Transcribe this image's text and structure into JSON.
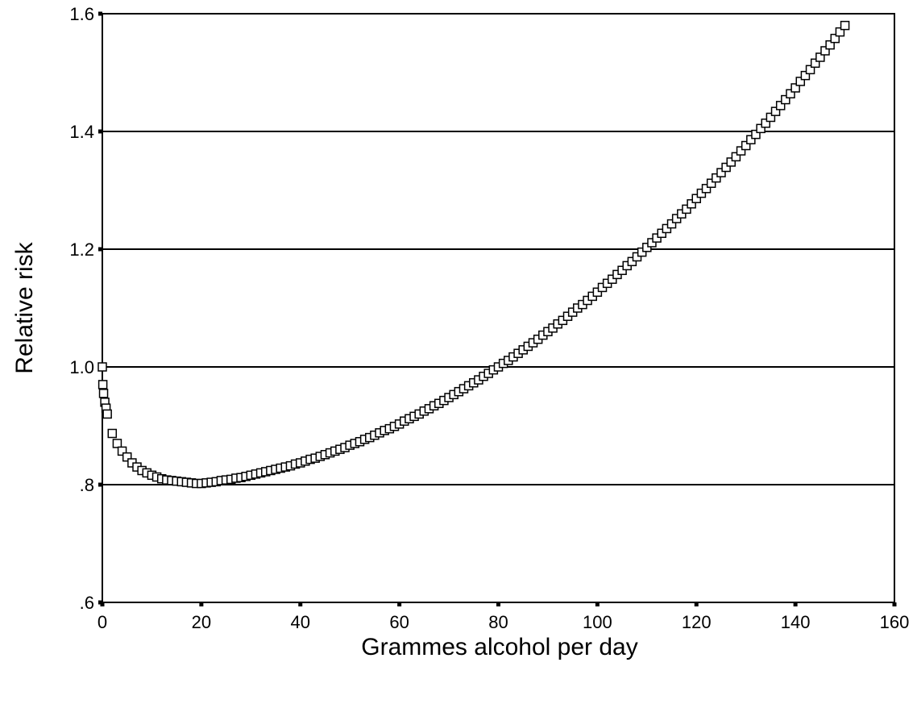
{
  "chart_data": {
    "type": "scatter",
    "xlabel": "Grammes alcohol per day",
    "ylabel": "Relative risk",
    "color": "#000000",
    "marker": "square-open",
    "x": [
      0,
      0.1,
      0.25,
      0.5,
      0.75,
      1,
      2,
      3,
      4,
      5,
      6,
      7,
      8,
      9,
      10,
      11,
      12,
      13,
      14,
      15,
      16,
      17,
      18,
      19,
      20,
      21,
      22,
      23,
      24,
      25,
      26,
      27,
      28,
      29,
      30,
      31,
      32,
      33,
      34,
      35,
      36,
      37,
      38,
      39,
      40,
      41,
      42,
      43,
      44,
      45,
      46,
      47,
      48,
      49,
      50,
      51,
      52,
      53,
      54,
      55,
      56,
      57,
      58,
      59,
      60,
      61,
      62,
      63,
      64,
      65,
      66,
      67,
      68,
      69,
      70,
      71,
      72,
      73,
      74,
      75,
      76,
      77,
      78,
      79,
      80,
      81,
      82,
      83,
      84,
      85,
      86,
      87,
      88,
      89,
      90,
      91,
      92,
      93,
      94,
      95,
      96,
      97,
      98,
      99,
      100,
      101,
      102,
      103,
      104,
      105,
      106,
      107,
      108,
      109,
      110,
      111,
      112,
      113,
      114,
      115,
      116,
      117,
      118,
      119,
      120,
      121,
      122,
      123,
      124,
      125,
      126,
      127,
      128,
      129,
      130,
      131,
      132,
      133,
      134,
      135,
      136,
      137,
      138,
      139,
      140,
      141,
      142,
      143,
      144,
      145,
      146,
      147,
      148,
      149,
      150
    ],
    "values": [
      1.0,
      0.97,
      0.955,
      0.94,
      0.93,
      0.92,
      0.887,
      0.87,
      0.857,
      0.847,
      0.837,
      0.83,
      0.824,
      0.82,
      0.816,
      0.813,
      0.81,
      0.808,
      0.807,
      0.806,
      0.805,
      0.804,
      0.803,
      0.802,
      0.802,
      0.803,
      0.804,
      0.805,
      0.807,
      0.808,
      0.809,
      0.811,
      0.812,
      0.814,
      0.816,
      0.818,
      0.82,
      0.822,
      0.824,
      0.826,
      0.828,
      0.83,
      0.832,
      0.835,
      0.837,
      0.84,
      0.843,
      0.845,
      0.848,
      0.851,
      0.854,
      0.857,
      0.86,
      0.863,
      0.867,
      0.87,
      0.873,
      0.877,
      0.88,
      0.884,
      0.888,
      0.892,
      0.895,
      0.899,
      0.903,
      0.908,
      0.912,
      0.916,
      0.92,
      0.925,
      0.929,
      0.934,
      0.938,
      0.943,
      0.948,
      0.953,
      0.958,
      0.963,
      0.968,
      0.973,
      0.978,
      0.984,
      0.989,
      0.995,
      1.0,
      1.006,
      1.011,
      1.017,
      1.023,
      1.029,
      1.035,
      1.041,
      1.047,
      1.054,
      1.06,
      1.066,
      1.073,
      1.079,
      1.086,
      1.093,
      1.1,
      1.106,
      1.113,
      1.12,
      1.127,
      1.135,
      1.142,
      1.149,
      1.157,
      1.164,
      1.172,
      1.179,
      1.187,
      1.195,
      1.203,
      1.211,
      1.219,
      1.227,
      1.235,
      1.243,
      1.252,
      1.26,
      1.268,
      1.277,
      1.286,
      1.295,
      1.303,
      1.312,
      1.321,
      1.33,
      1.339,
      1.348,
      1.357,
      1.367,
      1.376,
      1.386,
      1.395,
      1.405,
      1.414,
      1.424,
      1.434,
      1.444,
      1.454,
      1.464,
      1.474,
      1.485,
      1.495,
      1.505,
      1.516,
      1.526,
      1.537,
      1.547,
      1.558,
      1.569,
      1.58
    ],
    "xlim": [
      0,
      160
    ],
    "xticks": [
      0,
      20,
      40,
      60,
      80,
      100,
      120,
      140,
      160
    ],
    "ylim": [
      0.6,
      1.6
    ],
    "yticks": [
      {
        "value": 0.6,
        "label": ".6"
      },
      {
        "value": 0.8,
        "label": ".8"
      },
      {
        "value": 1.0,
        "label": "1.0"
      },
      {
        "value": 1.2,
        "label": "1.2"
      },
      {
        "value": 1.4,
        "label": "1.4"
      },
      {
        "value": 1.6,
        "label": "1.6"
      }
    ],
    "grid": true
  }
}
